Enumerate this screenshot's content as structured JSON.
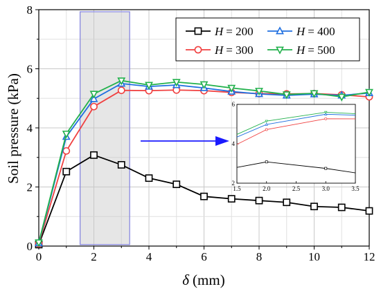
{
  "chart_data": {
    "type": "line",
    "xlabel_symbol": "δ",
    "xlabel_unit": "(mm)",
    "ylabel": "Soil pressure (kPa)",
    "xlim": [
      0,
      12
    ],
    "ylim": [
      0,
      8
    ],
    "xticks": [
      "0",
      "2",
      "4",
      "6",
      "8",
      "10",
      "12"
    ],
    "yticks": [
      "0",
      "2",
      "4",
      "6",
      "8"
    ],
    "grid": true,
    "legend_position": "top-right",
    "highlight_region": [
      1.5,
      3.3
    ],
    "series": [
      {
        "name": "H = 200",
        "name_var": "H",
        "name_value": "= 200",
        "color": "#000000",
        "marker": "square",
        "x": [
          0,
          1,
          2,
          3,
          4,
          5,
          6,
          7,
          8,
          9,
          10,
          11,
          12
        ],
        "y": [
          0.05,
          2.52,
          3.08,
          2.75,
          2.3,
          2.09,
          1.68,
          1.6,
          1.54,
          1.48,
          1.34,
          1.31,
          1.19
        ]
      },
      {
        "name": "H = 300",
        "name_var": "H",
        "name_value": "= 300",
        "color": "#f04040",
        "marker": "circle",
        "x": [
          0,
          1,
          2,
          3,
          4,
          5,
          6,
          7,
          8,
          9,
          10,
          11,
          12
        ],
        "y": [
          0.08,
          3.22,
          4.72,
          5.27,
          5.26,
          5.28,
          5.26,
          5.2,
          5.16,
          5.15,
          5.16,
          5.12,
          5.05
        ]
      },
      {
        "name": "H = 400",
        "name_var": "H",
        "name_value": "= 400",
        "color": "#1f6fe0",
        "marker": "triangle-up",
        "x": [
          0,
          1,
          2,
          3,
          4,
          5,
          6,
          7,
          8,
          9,
          10,
          11,
          12
        ],
        "y": [
          0.1,
          3.7,
          4.98,
          5.5,
          5.4,
          5.45,
          5.35,
          5.23,
          5.15,
          5.1,
          5.14,
          5.1,
          5.18
        ]
      },
      {
        "name": "H = 500",
        "name_var": "H",
        "name_value": "= 500",
        "color": "#22b14c",
        "marker": "triangle-down",
        "x": [
          0,
          1,
          2,
          3,
          4,
          5,
          6,
          7,
          8,
          9,
          10,
          11,
          12
        ],
        "y": [
          0.12,
          3.8,
          5.15,
          5.6,
          5.45,
          5.55,
          5.47,
          5.35,
          5.25,
          5.13,
          5.17,
          5.05,
          5.21
        ]
      }
    ],
    "inset": {
      "xlim": [
        1.5,
        3.5
      ],
      "ylim": [
        2,
        6
      ],
      "xticks": [
        "1.5",
        "2.0",
        "2.5",
        "3.0",
        "3.5"
      ],
      "yticks": [
        "2",
        "4",
        "6"
      ]
    }
  }
}
